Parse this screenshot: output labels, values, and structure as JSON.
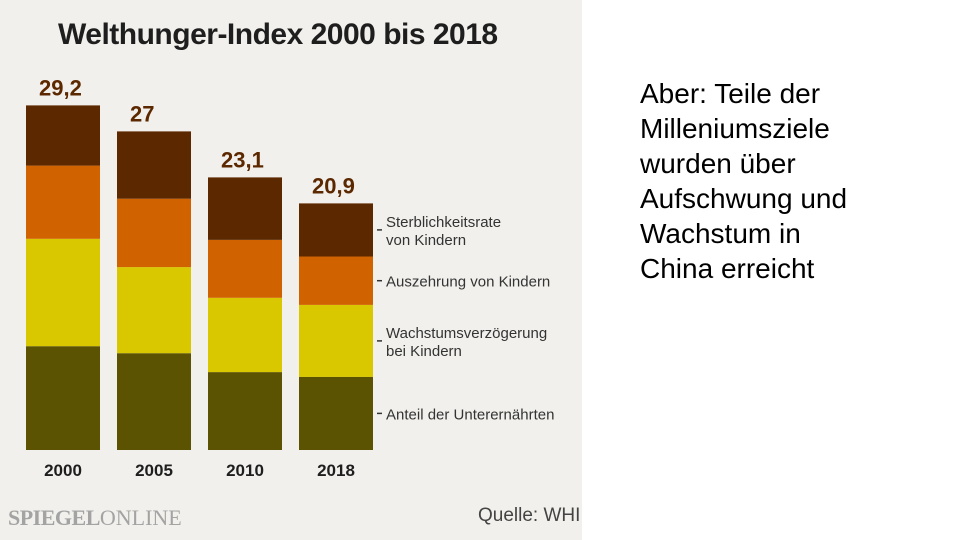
{
  "chart_data": {
    "type": "bar",
    "stacked": true,
    "title": "Welthunger-Index 2000 bis 2018",
    "categories": [
      "2000",
      "2005",
      "2010",
      "2018"
    ],
    "totals": [
      29.2,
      27,
      23.1,
      20.9
    ],
    "total_labels": [
      "29,2",
      "27",
      "23,1",
      "20,9"
    ],
    "series": [
      {
        "name": "Anteil der Unterernährten",
        "color": "#5b5302",
        "values": [
          8.8,
          8.2,
          6.6,
          6.2
        ]
      },
      {
        "name": "Wachstumsverzögerung bei Kindern",
        "color": "#d9c800",
        "values": [
          9.1,
          7.3,
          6.3,
          6.1
        ]
      },
      {
        "name": "Auszehrung von Kindern",
        "color": "#d16200",
        "values": [
          6.2,
          5.8,
          4.9,
          4.1
        ]
      },
      {
        "name": "Sterblichkeitsrate von Kindern",
        "color": "#5c2800",
        "values": [
          5.1,
          5.7,
          5.3,
          4.5
        ]
      }
    ],
    "legend_labels": [
      [
        "Sterblichkeitsrate",
        "von Kindern"
      ],
      [
        "Auszehrung von Kindern"
      ],
      [
        "Wachstumsverzögerung",
        "bei Kindern"
      ],
      [
        "Anteil der Unterernährten"
      ]
    ],
    "legend_position": "right",
    "grid": false,
    "xlabel": "",
    "ylabel": "",
    "ylim": [
      0,
      30
    ]
  },
  "footer": {
    "brand_part1": "SPIEGEL",
    "brand_part2": "ONLINE",
    "source": "Quelle: WHI"
  },
  "slide": {
    "text": "Aber: Teile der\nMilleniumsziele\nwurden über\nAufschwung und\nWachstum  in\nChina erreicht"
  }
}
